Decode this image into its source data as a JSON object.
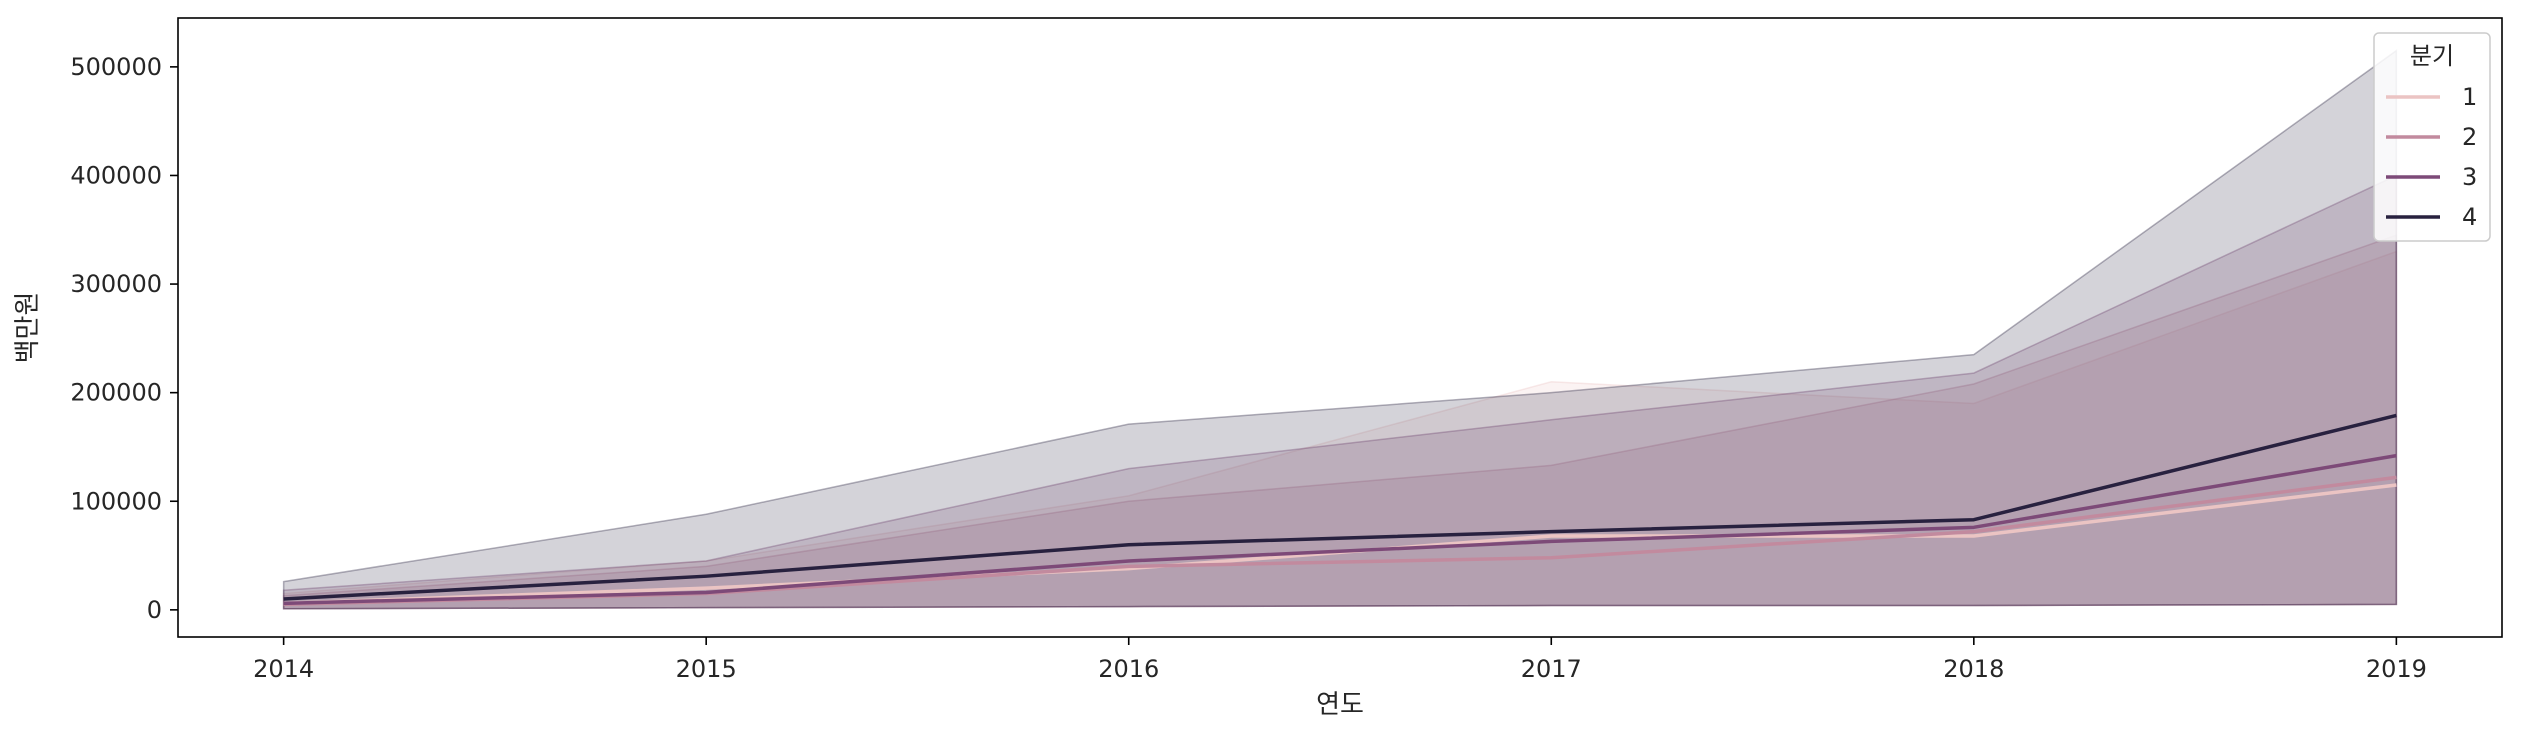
{
  "chart_data": {
    "type": "line",
    "title": "",
    "xlabel": "연도",
    "ylabel": "백만원",
    "x": [
      2014,
      2015,
      2016,
      2017,
      2018,
      2019
    ],
    "xlim": [
      2013.75,
      2019.25
    ],
    "ylim": [
      -25000,
      545000
    ],
    "yticks": [
      0,
      100000,
      200000,
      300000,
      400000,
      500000
    ],
    "grid": false,
    "confidence_band": true,
    "legend": {
      "title": "분기",
      "placement": "top-right"
    },
    "series": [
      {
        "name": "1",
        "color": "#ebc4c3",
        "values": [
          6000,
          20000,
          38000,
          68000,
          68000,
          115000
        ],
        "lower": [
          1000,
          2000,
          3000,
          4000,
          4000,
          5000
        ],
        "upper": [
          15000,
          45000,
          105000,
          210000,
          190000,
          330000
        ]
      },
      {
        "name": "2",
        "color": "#c28a9e",
        "values": [
          5000,
          15000,
          40000,
          48000,
          72000,
          122000
        ],
        "lower": [
          1000,
          2000,
          3000,
          4000,
          4000,
          5000
        ],
        "upper": [
          13000,
          40000,
          100000,
          133000,
          208000,
          345000
        ]
      },
      {
        "name": "3",
        "color": "#7d4a78",
        "values": [
          6000,
          16000,
          45000,
          63000,
          76000,
          142000
        ],
        "lower": [
          1000,
          2000,
          3000,
          4000,
          4000,
          5000
        ],
        "upper": [
          18000,
          45000,
          130000,
          175000,
          218000,
          400000
        ]
      },
      {
        "name": "4",
        "color": "#28213f",
        "values": [
          10000,
          31000,
          60000,
          72000,
          83000,
          179000
        ],
        "lower": [
          1000,
          2000,
          3000,
          4000,
          4000,
          5000
        ],
        "upper": [
          26000,
          88000,
          171000,
          200000,
          235000,
          515000
        ]
      }
    ]
  }
}
